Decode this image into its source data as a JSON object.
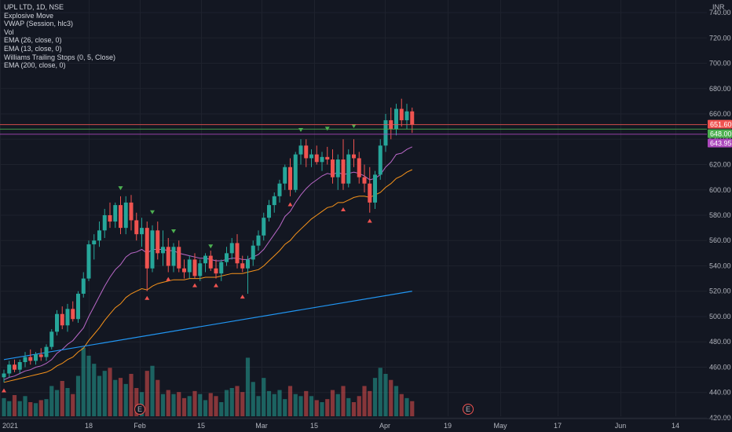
{
  "chart_data": {
    "type": "candlestick",
    "symbol_line": "UPL LTD, 1D, NSE",
    "indicators": [
      "Explosive Move",
      "VWAP (Session, hlc3)",
      "Vol",
      "EMA (26, close, 0)",
      "EMA (13, close, 0)",
      "Williams Trailing Stops (0, 5, Close)",
      "EMA (200, close, 0)"
    ],
    "currency": "INR",
    "ylim": [
      415,
      745
    ],
    "y_ticks": [
      420,
      440,
      460,
      480,
      500,
      520,
      540,
      560,
      580,
      600,
      620,
      640,
      660,
      680,
      700,
      720,
      740
    ],
    "x_ticks": [
      "2021",
      "18",
      "Feb",
      "15",
      "Mar",
      "15",
      "Apr",
      "19",
      "May",
      "17",
      "Jun",
      "14"
    ],
    "price_levels": [
      {
        "label": "651.60",
        "value": 651.6,
        "color": "#f05350"
      },
      {
        "label": "648.00",
        "value": 648.0,
        "color": "#4caf50"
      },
      {
        "label": "643.95",
        "value": 643.95,
        "color": "#ab47bc"
      }
    ],
    "earnings_marker": "E",
    "candles": [
      {
        "o": 452,
        "h": 458,
        "l": 448,
        "c": 455
      },
      {
        "o": 455,
        "h": 465,
        "l": 452,
        "c": 462
      },
      {
        "o": 462,
        "h": 466,
        "l": 456,
        "c": 458
      },
      {
        "o": 458,
        "h": 466,
        "l": 455,
        "c": 464
      },
      {
        "o": 464,
        "h": 472,
        "l": 460,
        "c": 468
      },
      {
        "o": 468,
        "h": 474,
        "l": 462,
        "c": 465
      },
      {
        "o": 465,
        "h": 472,
        "l": 462,
        "c": 470
      },
      {
        "o": 470,
        "h": 475,
        "l": 465,
        "c": 468
      },
      {
        "o": 468,
        "h": 478,
        "l": 465,
        "c": 476
      },
      {
        "o": 476,
        "h": 490,
        "l": 474,
        "c": 488
      },
      {
        "o": 488,
        "h": 505,
        "l": 485,
        "c": 502
      },
      {
        "o": 502,
        "h": 508,
        "l": 490,
        "c": 493
      },
      {
        "o": 493,
        "h": 510,
        "l": 488,
        "c": 506
      },
      {
        "o": 506,
        "h": 512,
        "l": 496,
        "c": 498
      },
      {
        "o": 498,
        "h": 520,
        "l": 495,
        "c": 518
      },
      {
        "o": 518,
        "h": 535,
        "l": 515,
        "c": 530
      },
      {
        "o": 530,
        "h": 560,
        "l": 528,
        "c": 557
      },
      {
        "o": 557,
        "h": 565,
        "l": 545,
        "c": 560
      },
      {
        "o": 560,
        "h": 575,
        "l": 555,
        "c": 568
      },
      {
        "o": 568,
        "h": 585,
        "l": 562,
        "c": 580
      },
      {
        "o": 580,
        "h": 590,
        "l": 570,
        "c": 575
      },
      {
        "o": 575,
        "h": 590,
        "l": 570,
        "c": 588
      },
      {
        "o": 588,
        "h": 595,
        "l": 565,
        "c": 570
      },
      {
        "o": 570,
        "h": 595,
        "l": 565,
        "c": 590
      },
      {
        "o": 590,
        "h": 596,
        "l": 568,
        "c": 576
      },
      {
        "o": 576,
        "h": 582,
        "l": 560,
        "c": 565
      },
      {
        "o": 565,
        "h": 578,
        "l": 555,
        "c": 570
      },
      {
        "o": 570,
        "h": 575,
        "l": 520,
        "c": 538
      },
      {
        "o": 538,
        "h": 572,
        "l": 535,
        "c": 568
      },
      {
        "o": 568,
        "h": 575,
        "l": 545,
        "c": 550
      },
      {
        "o": 550,
        "h": 568,
        "l": 540,
        "c": 555
      },
      {
        "o": 555,
        "h": 562,
        "l": 535,
        "c": 540
      },
      {
        "o": 540,
        "h": 558,
        "l": 535,
        "c": 555
      },
      {
        "o": 555,
        "h": 560,
        "l": 535,
        "c": 538
      },
      {
        "o": 538,
        "h": 545,
        "l": 530,
        "c": 535
      },
      {
        "o": 535,
        "h": 548,
        "l": 530,
        "c": 545
      },
      {
        "o": 545,
        "h": 550,
        "l": 530,
        "c": 532
      },
      {
        "o": 532,
        "h": 545,
        "l": 528,
        "c": 542
      },
      {
        "o": 542,
        "h": 550,
        "l": 535,
        "c": 548
      },
      {
        "o": 548,
        "h": 552,
        "l": 536,
        "c": 538
      },
      {
        "o": 538,
        "h": 545,
        "l": 530,
        "c": 534
      },
      {
        "o": 534,
        "h": 545,
        "l": 528,
        "c": 543
      },
      {
        "o": 543,
        "h": 555,
        "l": 540,
        "c": 550
      },
      {
        "o": 550,
        "h": 562,
        "l": 545,
        "c": 558
      },
      {
        "o": 558,
        "h": 565,
        "l": 538,
        "c": 542
      },
      {
        "o": 542,
        "h": 548,
        "l": 535,
        "c": 538
      },
      {
        "o": 538,
        "h": 548,
        "l": 518,
        "c": 545
      },
      {
        "o": 545,
        "h": 560,
        "l": 540,
        "c": 556
      },
      {
        "o": 556,
        "h": 568,
        "l": 552,
        "c": 564
      },
      {
        "o": 564,
        "h": 582,
        "l": 560,
        "c": 578
      },
      {
        "o": 578,
        "h": 592,
        "l": 575,
        "c": 588
      },
      {
        "o": 588,
        "h": 598,
        "l": 582,
        "c": 595
      },
      {
        "o": 595,
        "h": 608,
        "l": 590,
        "c": 605
      },
      {
        "o": 605,
        "h": 620,
        "l": 600,
        "c": 618
      },
      {
        "o": 618,
        "h": 625,
        "l": 595,
        "c": 600
      },
      {
        "o": 600,
        "h": 630,
        "l": 598,
        "c": 628
      },
      {
        "o": 628,
        "h": 640,
        "l": 620,
        "c": 635
      },
      {
        "o": 635,
        "h": 640,
        "l": 618,
        "c": 625
      },
      {
        "o": 625,
        "h": 632,
        "l": 618,
        "c": 628
      },
      {
        "o": 628,
        "h": 635,
        "l": 620,
        "c": 622
      },
      {
        "o": 622,
        "h": 630,
        "l": 615,
        "c": 626
      },
      {
        "o": 626,
        "h": 634,
        "l": 620,
        "c": 624
      },
      {
        "o": 624,
        "h": 632,
        "l": 605,
        "c": 610
      },
      {
        "o": 610,
        "h": 628,
        "l": 600,
        "c": 624
      },
      {
        "o": 624,
        "h": 640,
        "l": 600,
        "c": 605
      },
      {
        "o": 605,
        "h": 632,
        "l": 602,
        "c": 628
      },
      {
        "o": 628,
        "h": 640,
        "l": 618,
        "c": 625
      },
      {
        "o": 625,
        "h": 630,
        "l": 605,
        "c": 610
      },
      {
        "o": 610,
        "h": 620,
        "l": 598,
        "c": 605
      },
      {
        "o": 605,
        "h": 618,
        "l": 582,
        "c": 590
      },
      {
        "o": 590,
        "h": 615,
        "l": 585,
        "c": 612
      },
      {
        "o": 612,
        "h": 640,
        "l": 608,
        "c": 635
      },
      {
        "o": 635,
        "h": 660,
        "l": 630,
        "c": 655
      },
      {
        "o": 655,
        "h": 665,
        "l": 640,
        "c": 648
      },
      {
        "o": 648,
        "h": 668,
        "l": 643,
        "c": 664
      },
      {
        "o": 664,
        "h": 672,
        "l": 650,
        "c": 655
      },
      {
        "o": 655,
        "h": 668,
        "l": 648,
        "c": 662
      },
      {
        "o": 662,
        "h": 665,
        "l": 645,
        "c": 651.6
      }
    ],
    "volumes": [
      18,
      15,
      21,
      15,
      20,
      14,
      13,
      16,
      17,
      30,
      26,
      35,
      28,
      22,
      40,
      68,
      60,
      52,
      40,
      45,
      48,
      36,
      38,
      32,
      42,
      28,
      24,
      45,
      50,
      36,
      22,
      26,
      22,
      24,
      18,
      20,
      25,
      22,
      16,
      23,
      20,
      14,
      26,
      28,
      30,
      24,
      58,
      34,
      20,
      38,
      25,
      22,
      26,
      17,
      30,
      22,
      20,
      25,
      20,
      16,
      14,
      17,
      26,
      22,
      30,
      18,
      14,
      20,
      30,
      25,
      38,
      48,
      42,
      36,
      30,
      22,
      18,
      15
    ],
    "ema13": [
      450,
      452,
      453,
      455,
      457,
      458,
      460,
      461,
      463,
      466,
      471,
      474,
      478,
      481,
      486,
      491,
      500,
      508,
      516,
      524,
      531,
      537,
      541,
      547,
      550,
      551,
      553,
      550,
      553,
      553,
      553,
      552,
      552,
      550,
      549,
      548,
      547,
      546,
      546,
      545,
      544,
      544,
      545,
      546,
      546,
      545,
      545,
      547,
      549,
      553,
      559,
      565,
      571,
      579,
      583,
      590,
      596,
      601,
      605,
      608,
      611,
      613,
      612,
      614,
      612,
      613,
      614,
      613,
      611,
      608,
      609,
      612,
      618,
      622,
      628,
      629,
      632,
      634
    ],
    "ema26": [
      448,
      449,
      450,
      451,
      452,
      453,
      454,
      455,
      456,
      458,
      461,
      463,
      466,
      468,
      472,
      475,
      481,
      486,
      491,
      497,
      502,
      507,
      510,
      515,
      518,
      520,
      522,
      521,
      524,
      526,
      527,
      528,
      529,
      529,
      529,
      530,
      530,
      530,
      531,
      531,
      531,
      532,
      533,
      534,
      534,
      534,
      535,
      536,
      537,
      540,
      544,
      548,
      552,
      557,
      560,
      565,
      569,
      573,
      577,
      580,
      583,
      586,
      587,
      590,
      590,
      592,
      594,
      595,
      595,
      594,
      596,
      598,
      602,
      605,
      609,
      611,
      614,
      616
    ],
    "ema200_start": 466,
    "ema200_end": 520,
    "stop_markers_above": [
      {
        "index": 22,
        "value": 601
      },
      {
        "index": 28,
        "value": 582
      },
      {
        "index": 32,
        "value": 567
      },
      {
        "index": 39,
        "value": 555
      },
      {
        "index": 56,
        "value": 647
      },
      {
        "index": 61,
        "value": 648
      },
      {
        "index": 66,
        "value": 650
      }
    ],
    "stop_markers_below": [
      {
        "index": 0,
        "value": 442
      },
      {
        "index": 27,
        "value": 515
      },
      {
        "index": 31,
        "value": 530
      },
      {
        "index": 36,
        "value": 525
      },
      {
        "index": 40,
        "value": 525
      },
      {
        "index": 45,
        "value": 516
      },
      {
        "index": 54,
        "value": 589
      },
      {
        "index": 64,
        "value": 585
      },
      {
        "index": 69,
        "value": 576
      }
    ]
  }
}
